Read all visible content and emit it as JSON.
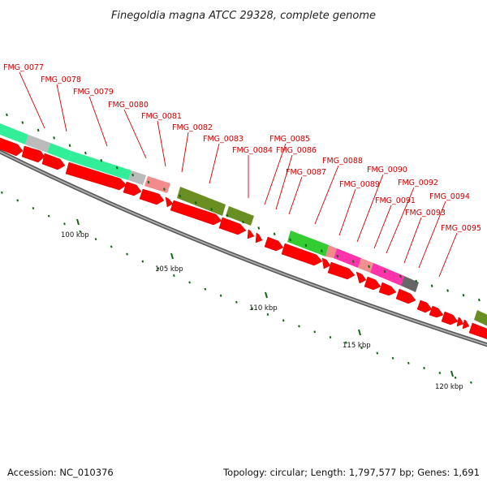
{
  "title": "Finegoldia magna ATCC 29328, complete genome",
  "accession_label": "Accession: NC_010376",
  "summary_label": "Topology: circular; Length: 1,797,577 bp; Genes: 1,691",
  "colors": {
    "cds": "#ff0000",
    "label": "#cc0000",
    "backbone": "#888888",
    "gc_tick": "#116611"
  },
  "ticks": [
    {
      "label": "100 kbp",
      "kb": 100
    },
    {
      "label": "105 kbp",
      "kb": 105
    },
    {
      "label": "110 kbp",
      "kb": 110
    },
    {
      "label": "115 kbp",
      "kb": 115
    },
    {
      "label": "120 kbp",
      "kb": 120
    }
  ],
  "gene_labels": [
    "FMG_0077",
    "FMG_0078",
    "FMG_0079",
    "FMG_0080",
    "FMG_0081",
    "FMG_0082",
    "FMG_0083",
    "FMG_0084",
    "FMG_0085",
    "FMG_0086",
    "FMG_0087",
    "FMG_0088",
    "FMG_0089",
    "FMG_0090",
    "FMG_0091",
    "FMG_0092",
    "FMG_0093",
    "FMG_0094",
    "FMG_0095"
  ],
  "cog_colors": [
    "#33ee99",
    "#bbbbbb",
    "#f28b8b",
    "#6b8e23",
    "#33cc33",
    "#ff33aa",
    "#f29090",
    "#666666"
  ]
}
